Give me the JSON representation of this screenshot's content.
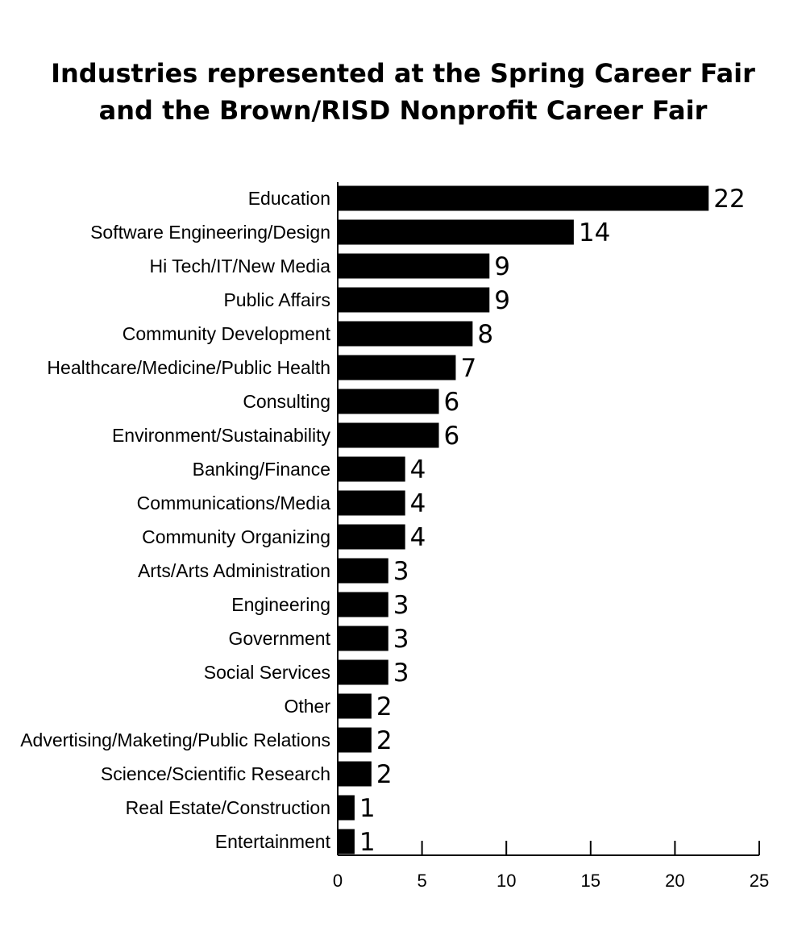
{
  "chart_data": {
    "type": "bar",
    "orientation": "horizontal",
    "title": [
      "Industries represented at the Spring Career Fair",
      "and the Brown/RISD Nonprofit Career Fair"
    ],
    "categories": [
      "Education",
      "Software Engineering/Design",
      "Hi Tech/IT/New Media",
      "Public Affairs",
      "Community Development",
      "Healthcare/Medicine/Public Health",
      "Consulting",
      "Environment/Sustainability",
      "Banking/Finance",
      "Communications/Media",
      "Community Organizing",
      "Arts/Arts Administration",
      "Engineering",
      "Government",
      "Social Services",
      "Other",
      "Advertising/Maketing/Public Relations",
      "Science/Scientific Research",
      "Real Estate/Construction",
      "Entertainment"
    ],
    "values": [
      22,
      14,
      9,
      9,
      8,
      7,
      6,
      6,
      4,
      4,
      4,
      3,
      3,
      3,
      3,
      2,
      2,
      2,
      1,
      1
    ],
    "xlim": [
      0,
      25
    ],
    "xticks": [
      0,
      5,
      10,
      15,
      20,
      25
    ],
    "grid": false,
    "legend": "none",
    "bar_color": "#000000"
  }
}
